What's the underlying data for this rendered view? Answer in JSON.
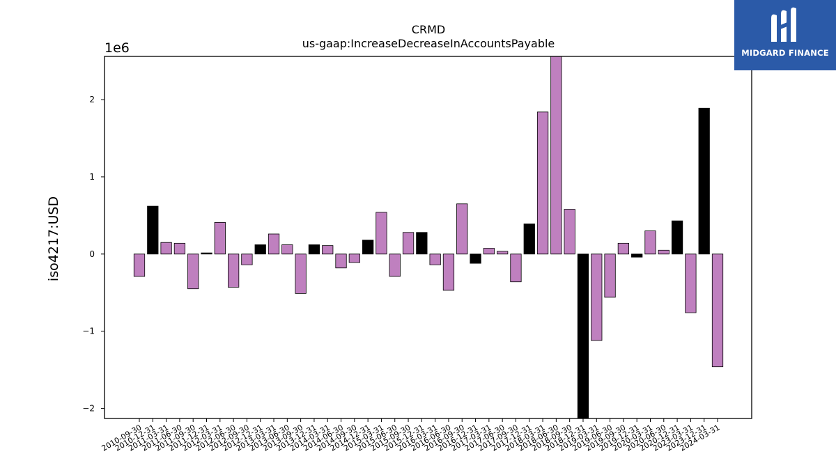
{
  "chart_data": {
    "type": "bar",
    "title": "CRMD",
    "subtitle": "us-gaap:IncreaseDecreaseInAccountsPayable",
    "xlabel": "",
    "ylabel": "iso4217:USD",
    "y_offset_label": "1e6",
    "ylim": [
      -2.13,
      2.56
    ],
    "yticks": [
      -2,
      -1,
      0,
      1,
      2
    ],
    "ytick_labels": [
      "−2",
      "−1",
      "0",
      "1",
      "2"
    ],
    "grid": false,
    "colors": {
      "annual": "#000000",
      "quarterly": "#bf80bf",
      "edge": "#000000"
    },
    "categories": [
      "2010-09-30",
      "2010-12-31",
      "2011-03-31",
      "2011-06-30",
      "2011-09-30",
      "2011-12-31",
      "2012-03-31",
      "2012-06-30",
      "2012-09-30",
      "2012-12-31",
      "2013-03-31",
      "2013-06-30",
      "2013-09-30",
      "2013-12-31",
      "2014-03-31",
      "2014-06-30",
      "2014-09-30",
      "2014-12-31",
      "2015-03-31",
      "2015-06-30",
      "2015-09-30",
      "2015-12-31",
      "2016-03-31",
      "2016-06-30",
      "2016-09-30",
      "2016-12-31",
      "2017-03-31",
      "2017-06-30",
      "2017-09-30",
      "2017-12-31",
      "2018-03-31",
      "2018-06-30",
      "2018-09-30",
      "2018-12-31",
      "2019-03-31",
      "2019-06-30",
      "2019-09-30",
      "2019-12-31",
      "2020-03-31",
      "2020-06-30",
      "2020-12-31",
      "2023-03-31",
      "2023-12-31",
      "2024-03-31"
    ],
    "values": [
      -290000,
      620000,
      150000,
      140000,
      -450000,
      15000,
      410000,
      -430000,
      -140000,
      120000,
      260000,
      120000,
      -510000,
      120000,
      110000,
      -180000,
      -110000,
      180000,
      540000,
      -290000,
      280000,
      280000,
      -140000,
      -470000,
      650000,
      -120000,
      75000,
      35000,
      -360000,
      390000,
      1840000,
      2570000,
      580000,
      -2130000,
      -1120000,
      -560000,
      140000,
      -40000,
      300000,
      50000,
      430000,
      -760000,
      1890000,
      -1460000
    ],
    "annual": [
      false,
      true,
      false,
      false,
      false,
      true,
      false,
      false,
      false,
      true,
      false,
      false,
      false,
      true,
      false,
      false,
      false,
      true,
      false,
      false,
      false,
      true,
      false,
      false,
      false,
      true,
      false,
      false,
      false,
      true,
      false,
      false,
      false,
      true,
      false,
      false,
      false,
      true,
      false,
      false,
      true,
      false,
      true,
      false
    ]
  },
  "logo": {
    "text": "MIDGARD FINANCE"
  }
}
